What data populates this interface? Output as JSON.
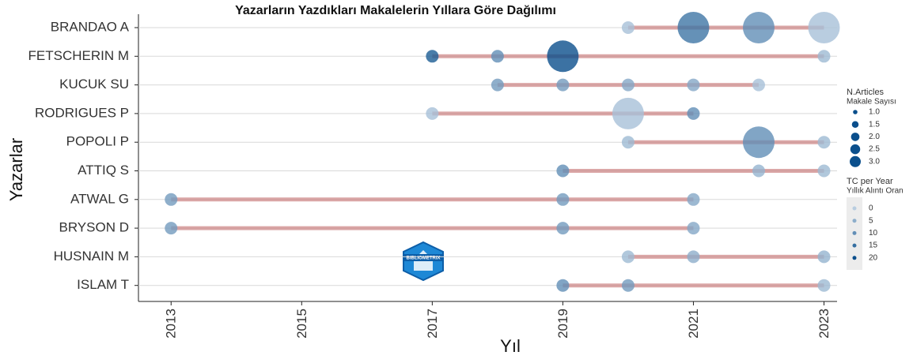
{
  "chart_data": {
    "type": "bubble-timeline",
    "title": "Yazarların Yazdıkları Makalelerin Yıllara Göre Dağılımı",
    "xlabel": "Yıl",
    "ylabel": "Yazarlar",
    "xlim": [
      2012.5,
      2023.2
    ],
    "xticks": [
      2013,
      2015,
      2017,
      2019,
      2021,
      2023
    ],
    "series": [
      {
        "name": "BRANDAO A",
        "x": [
          2020,
          2021,
          2022,
          2023
        ],
        "values": [
          1,
          3,
          3,
          3
        ],
        "tc": [
          2,
          14,
          10,
          2
        ]
      },
      {
        "name": "FETSCHERIN M",
        "x": [
          2017,
          2018,
          2019,
          2023
        ],
        "values": [
          1,
          1,
          3,
          1
        ],
        "tc": [
          18,
          10,
          20,
          3
        ]
      },
      {
        "name": "KUCUK SU",
        "x": [
          2018,
          2019,
          2020,
          2021,
          2022
        ],
        "values": [
          1,
          1,
          1,
          1,
          1
        ],
        "tc": [
          8,
          8,
          6,
          6,
          2
        ]
      },
      {
        "name": "RODRIGUES P",
        "x": [
          2017,
          2020,
          2021
        ],
        "values": [
          1,
          3,
          1
        ],
        "tc": [
          2,
          2,
          10
        ]
      },
      {
        "name": "POPOLI P",
        "x": [
          2020,
          2022,
          2023
        ],
        "values": [
          1,
          3,
          1
        ],
        "tc": [
          3,
          10,
          3
        ]
      },
      {
        "name": "ATTIQ S",
        "x": [
          2019,
          2022,
          2023
        ],
        "values": [
          1,
          1,
          1
        ],
        "tc": [
          10,
          4,
          3
        ]
      },
      {
        "name": "ATWAL G",
        "x": [
          2013,
          2019,
          2021
        ],
        "values": [
          1,
          1,
          1
        ],
        "tc": [
          8,
          8,
          6
        ]
      },
      {
        "name": "BRYSON D",
        "x": [
          2013,
          2019,
          2021
        ],
        "values": [
          1,
          1,
          1
        ],
        "tc": [
          8,
          8,
          6
        ]
      },
      {
        "name": "HUSNAIN M",
        "x": [
          2020,
          2021,
          2023
        ],
        "values": [
          1,
          1,
          1
        ],
        "tc": [
          3,
          5,
          4
        ]
      },
      {
        "name": "ISLAM T",
        "x": [
          2019,
          2020,
          2023
        ],
        "values": [
          1,
          1,
          1
        ],
        "tc": [
          10,
          8,
          3
        ]
      }
    ],
    "size_legend": {
      "title": "N.Articles",
      "subtitle": "Makale Sayısı",
      "ticks": [
        {
          "value": 1,
          "label": "1.0"
        },
        {
          "value": 1.5,
          "label": "1.5"
        },
        {
          "value": 2,
          "label": "2.0"
        },
        {
          "value": 2.5,
          "label": "2.5"
        },
        {
          "value": 3,
          "label": "3.0"
        }
      ]
    },
    "color_legend": {
      "title": "TC per Year",
      "subtitle": "Yıllık Alıntı Oran",
      "ticks": [
        0,
        5,
        10,
        15,
        20
      ]
    },
    "logo": "BIBLIOMETRIX"
  }
}
